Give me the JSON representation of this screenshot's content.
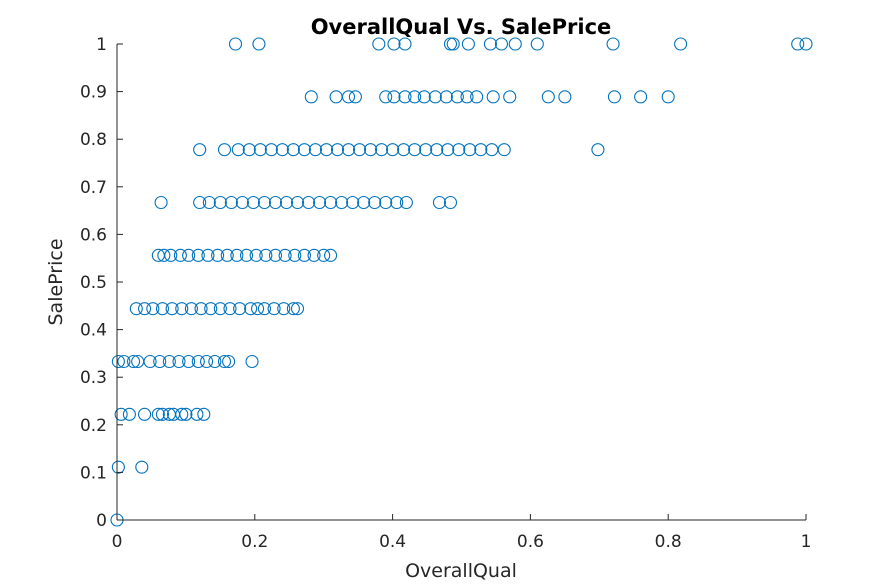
{
  "chart_data": {
    "type": "scatter",
    "title": "OverallQual Vs. SalePrice",
    "xlabel": "OverallQual",
    "ylabel": "SalePrice",
    "xlim": [
      0,
      1
    ],
    "ylim": [
      0,
      1
    ],
    "xticks": [
      "0",
      "0.2",
      "0.4",
      "0.6",
      "0.8",
      "1"
    ],
    "yticks": [
      "0",
      "0.1",
      "0.2",
      "0.3",
      "0.4",
      "0.5",
      "0.6",
      "0.7",
      "0.8",
      "0.9",
      "1"
    ],
    "grid": false,
    "marker": "circle-open",
    "color": "#0072BD",
    "series": [
      {
        "x": [
          0.0,
          0.002,
          0.036,
          0.006,
          0.018,
          0.04,
          0.06,
          0.066,
          0.076,
          0.082,
          0.094,
          0.1,
          0.116,
          0.126,
          0.002,
          0.01,
          0.024,
          0.03,
          0.048,
          0.062,
          0.076,
          0.09,
          0.104,
          0.118,
          0.13,
          0.142,
          0.156,
          0.162,
          0.196,
          0.028,
          0.04,
          0.052,
          0.066,
          0.08,
          0.094,
          0.108,
          0.122,
          0.136,
          0.15,
          0.164,
          0.178,
          0.194,
          0.204,
          0.214,
          0.228,
          0.242,
          0.256,
          0.262,
          0.06,
          0.068,
          0.078,
          0.092,
          0.104,
          0.118,
          0.132,
          0.146,
          0.16,
          0.174,
          0.188,
          0.202,
          0.216,
          0.23,
          0.244,
          0.258,
          0.272,
          0.286,
          0.3,
          0.31,
          0.064,
          0.12,
          0.134,
          0.15,
          0.166,
          0.182,
          0.198,
          0.214,
          0.23,
          0.246,
          0.262,
          0.278,
          0.294,
          0.31,
          0.326,
          0.342,
          0.358,
          0.374,
          0.39,
          0.406,
          0.42,
          0.468,
          0.484,
          0.12,
          0.156,
          0.176,
          0.192,
          0.208,
          0.224,
          0.24,
          0.256,
          0.272,
          0.288,
          0.304,
          0.32,
          0.336,
          0.352,
          0.368,
          0.384,
          0.4,
          0.416,
          0.432,
          0.448,
          0.464,
          0.48,
          0.496,
          0.512,
          0.528,
          0.544,
          0.562,
          0.698,
          0.282,
          0.318,
          0.336,
          0.346,
          0.39,
          0.402,
          0.418,
          0.432,
          0.446,
          0.462,
          0.478,
          0.494,
          0.508,
          0.522,
          0.546,
          0.57,
          0.626,
          0.65,
          0.722,
          0.76,
          0.8,
          0.172,
          0.206,
          0.38,
          0.402,
          0.418,
          0.484,
          0.488,
          0.51,
          0.542,
          0.558,
          0.578,
          0.61,
          0.72,
          0.818,
          0.988,
          1.0
        ],
        "y": [
          0.0,
          0.111,
          0.111,
          0.222,
          0.222,
          0.222,
          0.222,
          0.222,
          0.222,
          0.222,
          0.222,
          0.222,
          0.222,
          0.222,
          0.333,
          0.333,
          0.333,
          0.333,
          0.333,
          0.333,
          0.333,
          0.333,
          0.333,
          0.333,
          0.333,
          0.333,
          0.333,
          0.333,
          0.333,
          0.444,
          0.444,
          0.444,
          0.444,
          0.444,
          0.444,
          0.444,
          0.444,
          0.444,
          0.444,
          0.444,
          0.444,
          0.444,
          0.444,
          0.444,
          0.444,
          0.444,
          0.444,
          0.444,
          0.556,
          0.556,
          0.556,
          0.556,
          0.556,
          0.556,
          0.556,
          0.556,
          0.556,
          0.556,
          0.556,
          0.556,
          0.556,
          0.556,
          0.556,
          0.556,
          0.556,
          0.556,
          0.556,
          0.556,
          0.667,
          0.667,
          0.667,
          0.667,
          0.667,
          0.667,
          0.667,
          0.667,
          0.667,
          0.667,
          0.667,
          0.667,
          0.667,
          0.667,
          0.667,
          0.667,
          0.667,
          0.667,
          0.667,
          0.667,
          0.667,
          0.667,
          0.667,
          0.778,
          0.778,
          0.778,
          0.778,
          0.778,
          0.778,
          0.778,
          0.778,
          0.778,
          0.778,
          0.778,
          0.778,
          0.778,
          0.778,
          0.778,
          0.778,
          0.778,
          0.778,
          0.778,
          0.778,
          0.778,
          0.778,
          0.778,
          0.778,
          0.778,
          0.778,
          0.778,
          0.778,
          0.889,
          0.889,
          0.889,
          0.889,
          0.889,
          0.889,
          0.889,
          0.889,
          0.889,
          0.889,
          0.889,
          0.889,
          0.889,
          0.889,
          0.889,
          0.889,
          0.889,
          0.889,
          0.889,
          0.889,
          0.889,
          1.0,
          1.0,
          1.0,
          1.0,
          1.0,
          1.0,
          1.0,
          1.0,
          1.0,
          1.0,
          1.0,
          1.0,
          1.0,
          1.0,
          1.0,
          1.0
        ]
      }
    ]
  }
}
